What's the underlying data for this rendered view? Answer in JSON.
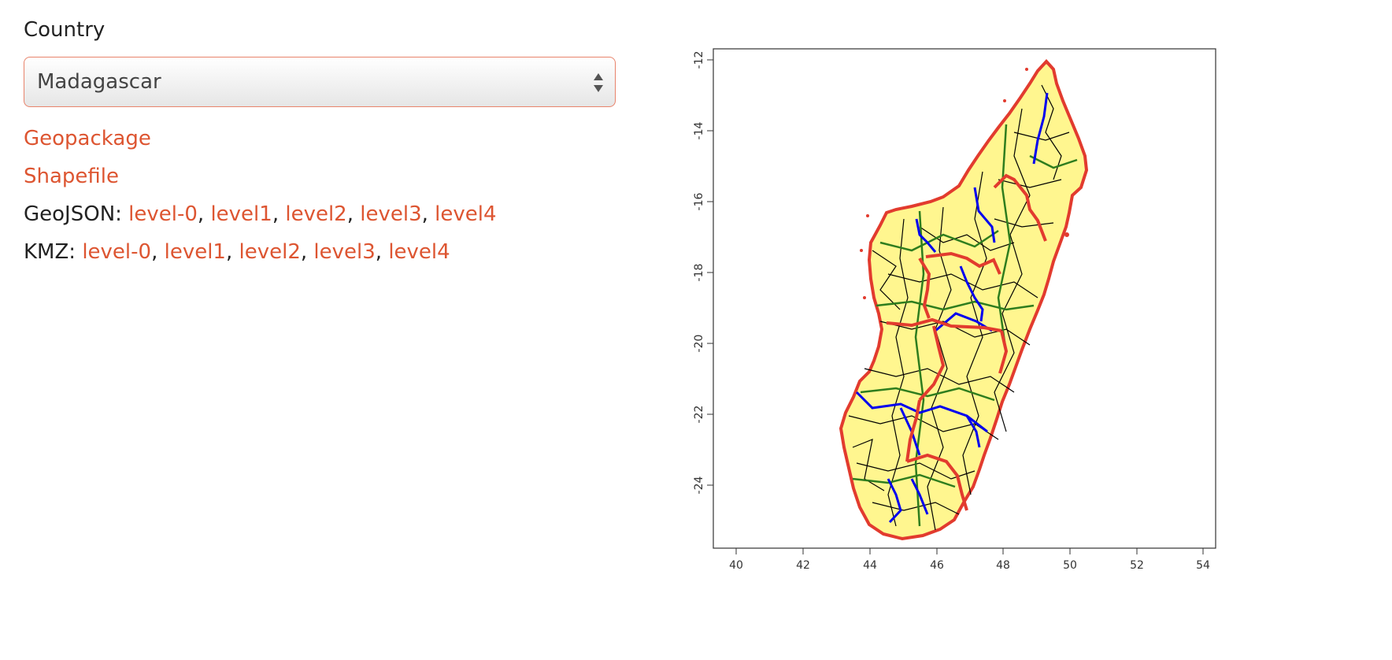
{
  "form": {
    "country_label": "Country",
    "country_selected": "Madagascar"
  },
  "downloads": {
    "geopackage_label": "Geopackage",
    "shapefile_label": "Shapefile",
    "geojson": {
      "label": "GeoJSON: ",
      "links": [
        "level-0",
        "level1",
        "level2",
        "level3",
        "level4"
      ]
    },
    "kmz": {
      "label": "KMZ: ",
      "links": [
        "level-0",
        "level1",
        "level2",
        "level3",
        "level4"
      ]
    },
    "separator": ", "
  },
  "map": {
    "x_ticks": [
      "40",
      "42",
      "44",
      "46",
      "48",
      "50",
      "52",
      "54"
    ],
    "y_ticks": [
      "-12",
      "-14",
      "-16",
      "-18",
      "-20",
      "-22",
      "-24"
    ],
    "colors": {
      "land_fill": "#fff68f",
      "level1_border": "#e23b2e",
      "level2_border": "#0000ee",
      "level3_border": "#2e7d1e",
      "level4_border": "#000000",
      "link": "#dd5531"
    }
  }
}
